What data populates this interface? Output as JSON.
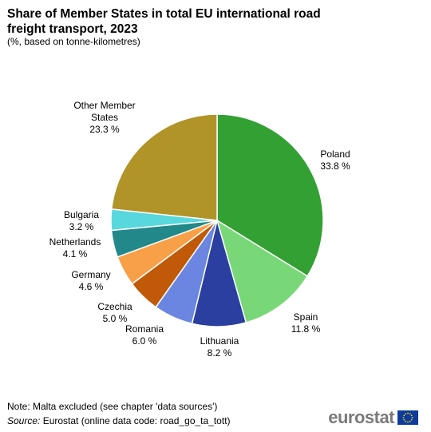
{
  "chart_data": {
    "type": "pie",
    "title": "Share of Member States in total EU international road freight transport, 2023",
    "subtitle": "(%, based on tonne-kilometres)",
    "unit": "%",
    "slices": [
      {
        "label": "Poland",
        "value": 33.8,
        "display": "33.8 %",
        "color": "#33a033"
      },
      {
        "label": "Spain",
        "value": 11.8,
        "display": "11.8 %",
        "color": "#78d878"
      },
      {
        "label": "Lithuania",
        "value": 8.2,
        "display": "8.2 %",
        "color": "#2a3f9f"
      },
      {
        "label": "Romania",
        "value": 6.0,
        "display": "6.0 %",
        "color": "#6a86e0"
      },
      {
        "label": "Czechia",
        "value": 5.0,
        "display": "5.0 %",
        "color": "#c05a08"
      },
      {
        "label": "Germany",
        "value": 4.6,
        "display": "4.6 %",
        "color": "#f8a048"
      },
      {
        "label": "Netherlands",
        "value": 4.1,
        "display": "4.1 %",
        "color": "#22888a"
      },
      {
        "label": "Bulgaria",
        "value": 3.2,
        "display": "3.2 %",
        "color": "#58d8dc"
      },
      {
        "label": "Other Member States",
        "value": 23.3,
        "display": "23.3 %",
        "color": "#b09428"
      }
    ]
  },
  "footer": {
    "note": "Note: Malta excluded (see chapter 'data sources')",
    "source_label": "Source:",
    "source_text": " Eurostat (online data code: road_go_ta_tott)",
    "brand": "eurostat"
  }
}
